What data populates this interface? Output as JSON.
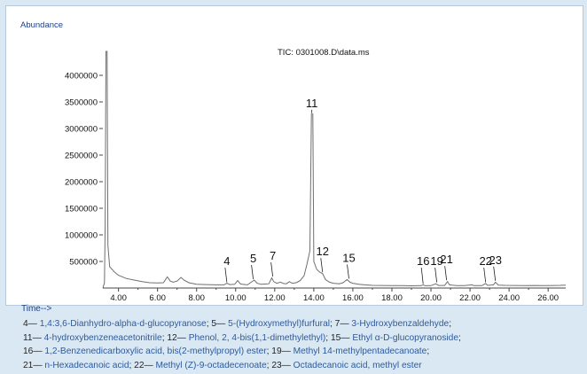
{
  "chart_data": {
    "type": "line",
    "ylabel": "Abundance",
    "xlabel": "Time-->",
    "title": "TIC: 0301008.D\\data.ms",
    "xlim": [
      3.2,
      26.9
    ],
    "ylim": [
      0,
      4500000
    ],
    "x_ticks": [
      "4.00",
      "6.00",
      "8.00",
      "10.00",
      "12.00",
      "14.00",
      "16.00",
      "18.00",
      "20.00",
      "22.00",
      "24.00",
      "26.00"
    ],
    "y_ticks": [
      "500000",
      "1000000",
      "1500000",
      "2000000",
      "2500000",
      "3000000",
      "3500000",
      "4000000"
    ],
    "peaks": [
      {
        "label": "4",
        "x": 9.55,
        "y": 90000
      },
      {
        "label": "5",
        "x": 10.9,
        "y": 150000
      },
      {
        "label": "7",
        "x": 11.9,
        "y": 200000
      },
      {
        "label": "11",
        "x": 13.9,
        "y": 3270000
      },
      {
        "label": "12",
        "x": 14.45,
        "y": 280000
      },
      {
        "label": "15",
        "x": 15.8,
        "y": 160000
      },
      {
        "label": "16",
        "x": 19.6,
        "y": 60000
      },
      {
        "label": "19",
        "x": 20.3,
        "y": 90000
      },
      {
        "label": "21",
        "x": 20.8,
        "y": 130000
      },
      {
        "label": "22",
        "x": 22.8,
        "y": 90000
      },
      {
        "label": "23",
        "x": 23.3,
        "y": 120000
      }
    ],
    "trace": [
      [
        3.2,
        0
      ],
      [
        3.28,
        100000
      ],
      [
        3.32,
        1200000
      ],
      [
        3.36,
        4450000
      ],
      [
        3.42,
        4450000
      ],
      [
        3.46,
        800000
      ],
      [
        3.55,
        400000
      ],
      [
        3.8,
        300000
      ],
      [
        4.0,
        240000
      ],
      [
        4.4,
        180000
      ],
      [
        4.8,
        150000
      ],
      [
        5.2,
        120000
      ],
      [
        5.6,
        100000
      ],
      [
        6.0,
        95000
      ],
      [
        6.3,
        100000
      ],
      [
        6.5,
        210000
      ],
      [
        6.65,
        130000
      ],
      [
        6.8,
        110000
      ],
      [
        7.0,
        130000
      ],
      [
        7.2,
        200000
      ],
      [
        7.35,
        150000
      ],
      [
        7.6,
        100000
      ],
      [
        8.0,
        70000
      ],
      [
        8.5,
        65000
      ],
      [
        9.0,
        60000
      ],
      [
        9.4,
        60000
      ],
      [
        9.55,
        90000
      ],
      [
        9.7,
        65000
      ],
      [
        9.95,
        70000
      ],
      [
        10.1,
        140000
      ],
      [
        10.25,
        75000
      ],
      [
        10.6,
        60000
      ],
      [
        10.8,
        110000
      ],
      [
        10.95,
        150000
      ],
      [
        11.1,
        90000
      ],
      [
        11.3,
        70000
      ],
      [
        11.5,
        75000
      ],
      [
        11.7,
        80000
      ],
      [
        11.85,
        190000
      ],
      [
        11.95,
        120000
      ],
      [
        12.1,
        90000
      ],
      [
        12.3,
        110000
      ],
      [
        12.45,
        85000
      ],
      [
        12.6,
        80000
      ],
      [
        12.75,
        120000
      ],
      [
        12.9,
        90000
      ],
      [
        13.1,
        100000
      ],
      [
        13.3,
        140000
      ],
      [
        13.5,
        230000
      ],
      [
        13.65,
        450000
      ],
      [
        13.8,
        700000
      ],
      [
        13.88,
        3270000
      ],
      [
        13.95,
        3270000
      ],
      [
        14.0,
        500000
      ],
      [
        14.15,
        350000
      ],
      [
        14.3,
        300000
      ],
      [
        14.45,
        270000
      ],
      [
        14.6,
        160000
      ],
      [
        14.8,
        110000
      ],
      [
        15.0,
        90000
      ],
      [
        15.3,
        80000
      ],
      [
        15.5,
        100000
      ],
      [
        15.7,
        160000
      ],
      [
        15.85,
        110000
      ],
      [
        16.0,
        90000
      ],
      [
        16.3,
        70000
      ],
      [
        16.6,
        60000
      ],
      [
        17.0,
        50000
      ],
      [
        17.5,
        48000
      ],
      [
        18.0,
        45000
      ],
      [
        18.5,
        45000
      ],
      [
        19.0,
        42000
      ],
      [
        19.5,
        45000
      ],
      [
        19.6,
        60000
      ],
      [
        19.7,
        44000
      ],
      [
        20.0,
        45000
      ],
      [
        20.25,
        80000
      ],
      [
        20.4,
        48000
      ],
      [
        20.7,
        48000
      ],
      [
        20.85,
        120000
      ],
      [
        20.95,
        60000
      ],
      [
        21.3,
        45000
      ],
      [
        21.7,
        45000
      ],
      [
        22.1,
        60000
      ],
      [
        22.2,
        45000
      ],
      [
        22.6,
        45000
      ],
      [
        22.8,
        85000
      ],
      [
        22.9,
        50000
      ],
      [
        23.2,
        60000
      ],
      [
        23.3,
        110000
      ],
      [
        23.45,
        55000
      ],
      [
        23.8,
        50000
      ],
      [
        24.3,
        48000
      ],
      [
        24.8,
        45000
      ],
      [
        25.3,
        48000
      ],
      [
        25.8,
        45000
      ],
      [
        26.3,
        48000
      ],
      [
        26.6,
        50000
      ],
      [
        26.9,
        55000
      ]
    ]
  },
  "legend_lines": [
    [
      {
        "num": "4—",
        "name": "1,4:3,6-Dianhydro-alpha-d-glucopyranose"
      },
      {
        "num": "; 5—",
        "name": "5-(Hydroxymethyl)furfural"
      },
      {
        "num": "; 7—",
        "name": "3-Hydroxybenzaldehyde"
      },
      {
        "num": ";",
        "name": ""
      }
    ],
    [
      {
        "num": "11—",
        "name": "4-hydroxybenzeneacetonitrile"
      },
      {
        "num": "; 12—",
        "name": "Phenol, 2, 4-bis(1,1-dimethylethyl)"
      },
      {
        "num": "; 15—",
        "name": "Ethyl α-D-glucopyranoside"
      },
      {
        "num": ";",
        "name": ""
      }
    ],
    [
      {
        "num": "16—",
        "name": "1,2-Benzenedicarboxylic acid, bis(2-methylpropyl) ester"
      },
      {
        "num": "; 19—",
        "name": "Methyl 14-methylpentadecanoate"
      },
      {
        "num": ";",
        "name": ""
      }
    ],
    [
      {
        "num": "21—",
        "name": "n-Hexadecanoic acid"
      },
      {
        "num": "; 22—",
        "name": "Methyl (Z)-9-octadecenoate"
      },
      {
        "num": "; 23—",
        "name": "Octadecanoic acid, methyl ester"
      }
    ]
  ],
  "colors": {
    "trace": "#6f6f6f",
    "axis": "#444444",
    "labels": "#1b3f8a",
    "peak_labels": "#111111"
  }
}
